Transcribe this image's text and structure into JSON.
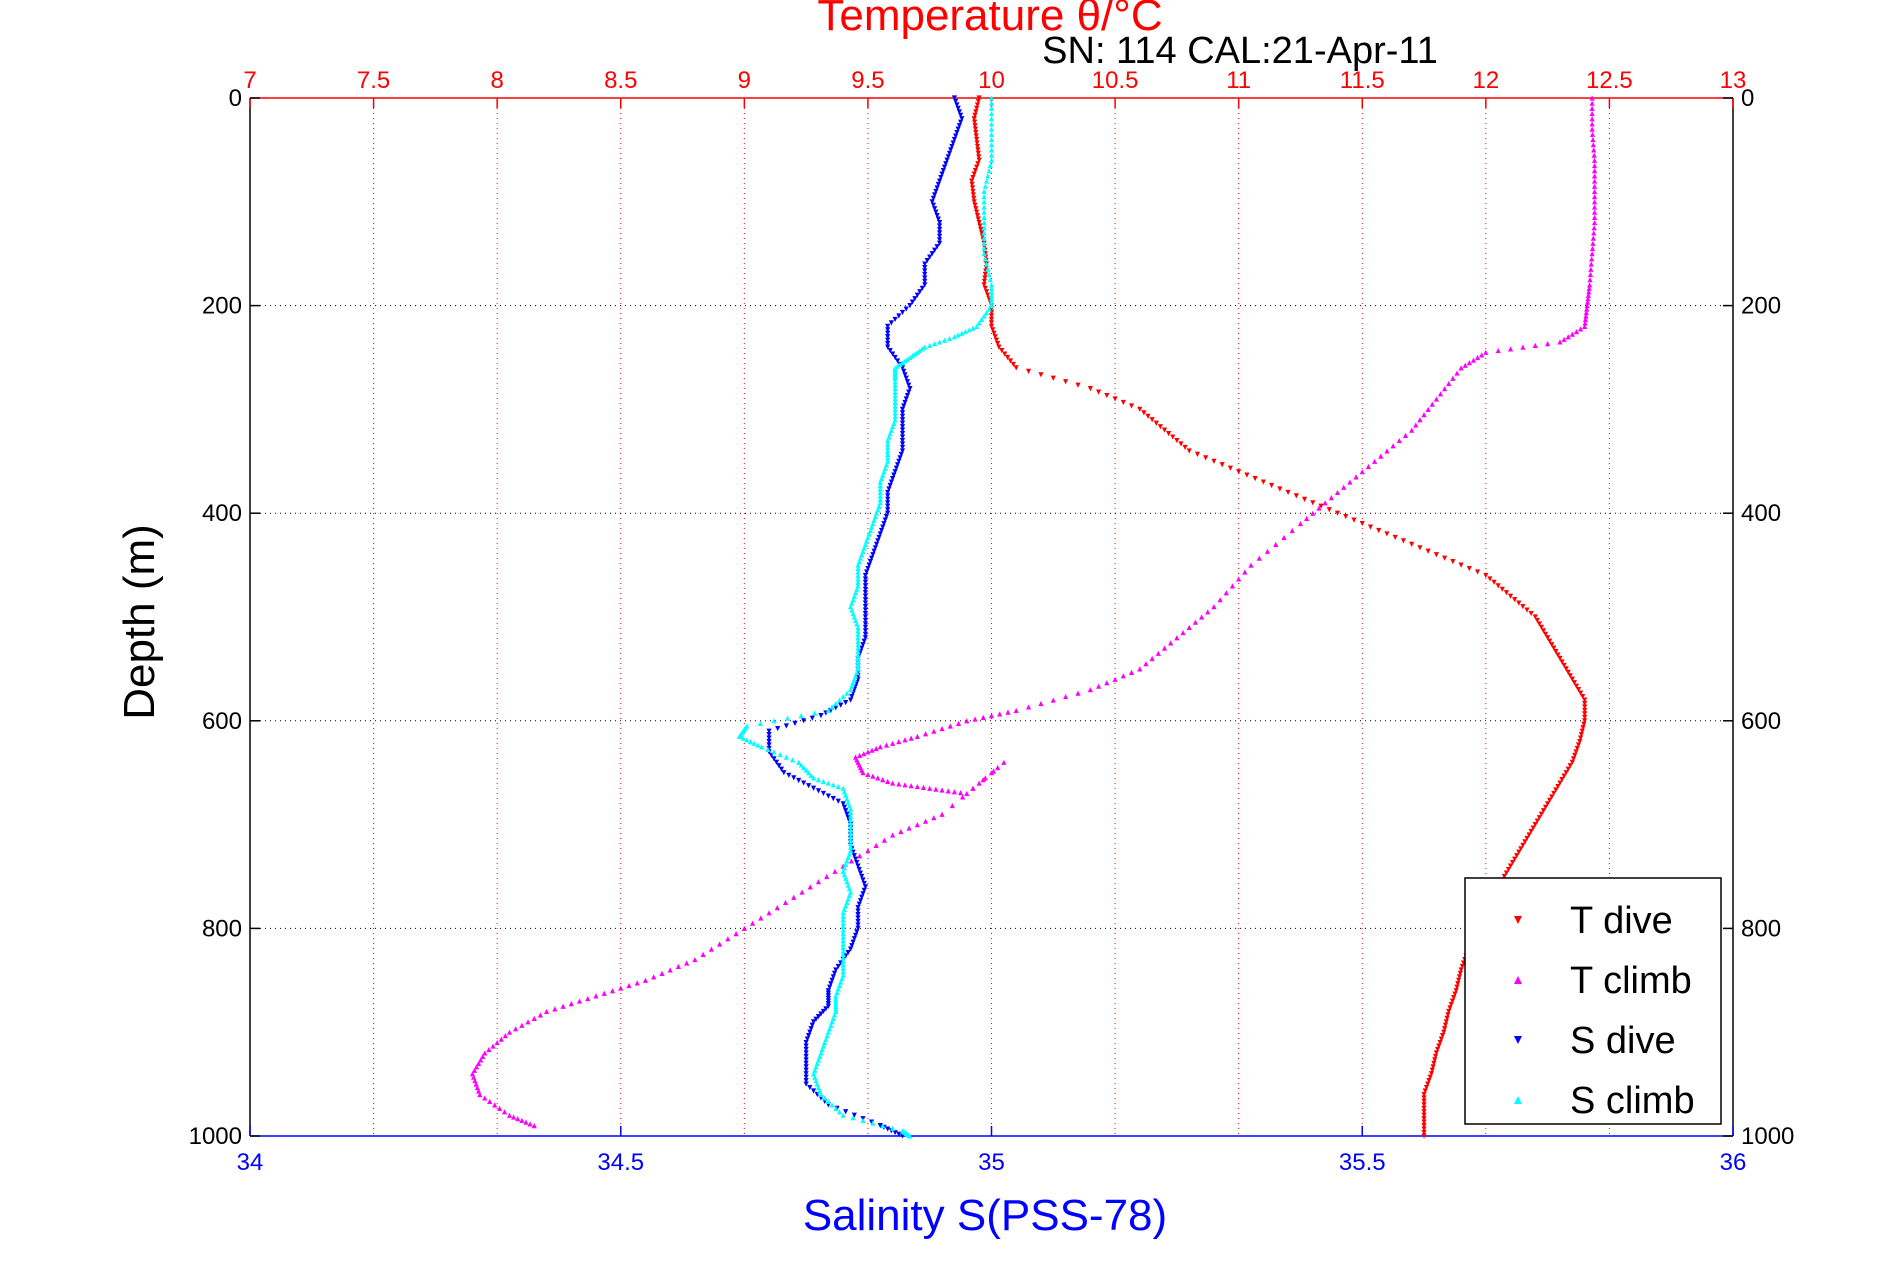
{
  "chart_data": {
    "type": "scatter",
    "top_title": "Temperature θ/°C",
    "subtitle": "SN: 114  CAL:21-Apr-11",
    "ylabel": "Depth (m)",
    "xlabel": "Salinity S(PSS-78)",
    "y_axis": {
      "range": [
        0,
        1000
      ],
      "reversed": true,
      "ticks": [
        0,
        200,
        400,
        600,
        800,
        1000
      ]
    },
    "temperature_axis": {
      "range": [
        7,
        13
      ],
      "ticks": [
        "7",
        "7.5",
        "8",
        "8.5",
        "9",
        "9.5",
        "10",
        "10.5",
        "11",
        "11.5",
        "12",
        "12.5",
        "13"
      ],
      "color": "#ff0000",
      "grid": true
    },
    "salinity_axis": {
      "range": [
        34,
        36
      ],
      "ticks": [
        "34",
        "34.5",
        "35",
        "35.5",
        "36"
      ],
      "color": "#0000ff"
    },
    "legend_position": "bottom-right",
    "series": [
      {
        "name": "T dive",
        "variable": "temperature",
        "color": "#ff0000",
        "marker": "triangle-down",
        "points": [
          [
            9.95,
            0
          ],
          [
            9.93,
            20
          ],
          [
            9.94,
            40
          ],
          [
            9.95,
            60
          ],
          [
            9.92,
            80
          ],
          [
            9.93,
            100
          ],
          [
            9.95,
            120
          ],
          [
            9.97,
            140
          ],
          [
            9.98,
            160
          ],
          [
            9.97,
            180
          ],
          [
            10.0,
            200
          ],
          [
            10.0,
            220
          ],
          [
            10.03,
            240
          ],
          [
            10.1,
            260
          ],
          [
            10.4,
            280
          ],
          [
            10.6,
            300
          ],
          [
            10.7,
            320
          ],
          [
            10.8,
            340
          ],
          [
            11.0,
            360
          ],
          [
            11.2,
            380
          ],
          [
            11.4,
            400
          ],
          [
            11.6,
            420
          ],
          [
            11.8,
            440
          ],
          [
            12.0,
            460
          ],
          [
            12.1,
            480
          ],
          [
            12.2,
            500
          ],
          [
            12.25,
            520
          ],
          [
            12.3,
            540
          ],
          [
            12.35,
            560
          ],
          [
            12.4,
            580
          ],
          [
            12.4,
            600
          ],
          [
            12.38,
            620
          ],
          [
            12.35,
            640
          ],
          [
            12.3,
            660
          ],
          [
            12.25,
            680
          ],
          [
            12.2,
            700
          ],
          [
            12.15,
            720
          ],
          [
            12.1,
            740
          ],
          [
            12.05,
            760
          ],
          [
            12.0,
            780
          ],
          [
            11.95,
            800
          ],
          [
            11.93,
            820
          ],
          [
            11.9,
            840
          ],
          [
            11.88,
            860
          ],
          [
            11.85,
            880
          ],
          [
            11.83,
            900
          ],
          [
            11.8,
            920
          ],
          [
            11.78,
            940
          ],
          [
            11.75,
            960
          ],
          [
            11.75,
            980
          ],
          [
            11.75,
            1000
          ]
        ]
      },
      {
        "name": "T climb",
        "variable": "temperature",
        "color": "#ff00ff",
        "marker": "triangle-up",
        "points": [
          [
            12.43,
            0
          ],
          [
            12.43,
            30
          ],
          [
            12.44,
            60
          ],
          [
            12.44,
            90
          ],
          [
            12.44,
            120
          ],
          [
            12.43,
            150
          ],
          [
            12.42,
            180
          ],
          [
            12.41,
            200
          ],
          [
            12.4,
            220
          ],
          [
            12.3,
            235
          ],
          [
            12.0,
            245
          ],
          [
            11.9,
            260
          ],
          [
            11.8,
            290
          ],
          [
            11.7,
            320
          ],
          [
            11.55,
            350
          ],
          [
            11.4,
            380
          ],
          [
            11.25,
            410
          ],
          [
            11.05,
            450
          ],
          [
            10.9,
            490
          ],
          [
            10.75,
            520
          ],
          [
            10.6,
            550
          ],
          [
            10.4,
            570
          ],
          [
            10.1,
            590
          ],
          [
            9.9,
            600
          ],
          [
            9.7,
            615
          ],
          [
            9.55,
            625
          ],
          [
            9.45,
            635
          ],
          [
            9.48,
            650
          ],
          [
            9.6,
            660
          ],
          [
            9.75,
            665
          ],
          [
            9.9,
            670
          ],
          [
            10.05,
            640
          ],
          [
            9.8,
            690
          ],
          [
            9.6,
            710
          ],
          [
            9.4,
            740
          ],
          [
            9.2,
            770
          ],
          [
            9.0,
            800
          ],
          [
            8.8,
            830
          ],
          [
            8.6,
            850
          ],
          [
            8.4,
            865
          ],
          [
            8.2,
            880
          ],
          [
            8.05,
            900
          ],
          [
            7.95,
            920
          ],
          [
            7.9,
            940
          ],
          [
            7.93,
            960
          ],
          [
            8.05,
            980
          ],
          [
            8.15,
            990
          ]
        ]
      },
      {
        "name": "S dive",
        "variable": "salinity",
        "color": "#0000ff",
        "marker": "triangle-down",
        "points": [
          [
            34.95,
            0
          ],
          [
            34.96,
            20
          ],
          [
            34.95,
            40
          ],
          [
            34.94,
            60
          ],
          [
            34.93,
            80
          ],
          [
            34.92,
            100
          ],
          [
            34.93,
            120
          ],
          [
            34.93,
            140
          ],
          [
            34.91,
            160
          ],
          [
            34.91,
            180
          ],
          [
            34.89,
            200
          ],
          [
            34.86,
            220
          ],
          [
            34.86,
            240
          ],
          [
            34.88,
            260
          ],
          [
            34.89,
            280
          ],
          [
            34.88,
            300
          ],
          [
            34.88,
            320
          ],
          [
            34.88,
            340
          ],
          [
            34.87,
            360
          ],
          [
            34.86,
            380
          ],
          [
            34.86,
            400
          ],
          [
            34.85,
            420
          ],
          [
            34.84,
            440
          ],
          [
            34.83,
            460
          ],
          [
            34.83,
            480
          ],
          [
            34.83,
            500
          ],
          [
            34.83,
            520
          ],
          [
            34.82,
            540
          ],
          [
            34.82,
            560
          ],
          [
            34.81,
            580
          ],
          [
            34.77,
            595
          ],
          [
            34.7,
            610
          ],
          [
            34.7,
            630
          ],
          [
            34.72,
            650
          ],
          [
            34.76,
            665
          ],
          [
            34.8,
            680
          ],
          [
            34.81,
            700
          ],
          [
            34.81,
            720
          ],
          [
            34.82,
            740
          ],
          [
            34.83,
            760
          ],
          [
            34.82,
            780
          ],
          [
            34.82,
            800
          ],
          [
            34.81,
            820
          ],
          [
            34.79,
            840
          ],
          [
            34.78,
            860
          ],
          [
            34.78,
            875
          ],
          [
            34.76,
            890
          ],
          [
            34.75,
            910
          ],
          [
            34.75,
            930
          ],
          [
            34.75,
            950
          ],
          [
            34.78,
            970
          ],
          [
            34.85,
            990
          ],
          [
            34.88,
            1000
          ]
        ]
      },
      {
        "name": "S climb",
        "variable": "salinity",
        "color": "#00ffff",
        "marker": "triangle-up",
        "points": [
          [
            35.0,
            0
          ],
          [
            35.0,
            30
          ],
          [
            35.0,
            60
          ],
          [
            34.99,
            90
          ],
          [
            34.99,
            120
          ],
          [
            34.99,
            150
          ],
          [
            35.0,
            180
          ],
          [
            35.0,
            200
          ],
          [
            34.98,
            220
          ],
          [
            34.95,
            230
          ],
          [
            34.91,
            240
          ],
          [
            34.89,
            250
          ],
          [
            34.87,
            260
          ],
          [
            34.87,
            270
          ],
          [
            34.87,
            290
          ],
          [
            34.87,
            310
          ],
          [
            34.86,
            330
          ],
          [
            34.86,
            350
          ],
          [
            34.85,
            370
          ],
          [
            34.85,
            390
          ],
          [
            34.84,
            410
          ],
          [
            34.83,
            430
          ],
          [
            34.82,
            450
          ],
          [
            34.82,
            470
          ],
          [
            34.81,
            490
          ],
          [
            34.82,
            510
          ],
          [
            34.82,
            530
          ],
          [
            34.82,
            550
          ],
          [
            34.81,
            570
          ],
          [
            34.78,
            590
          ],
          [
            34.67,
            605
          ],
          [
            34.66,
            615
          ],
          [
            34.69,
            625
          ],
          [
            34.74,
            640
          ],
          [
            34.76,
            655
          ],
          [
            34.8,
            665
          ],
          [
            34.81,
            685
          ],
          [
            34.81,
            705
          ],
          [
            34.81,
            725
          ],
          [
            34.8,
            745
          ],
          [
            34.81,
            765
          ],
          [
            34.8,
            785
          ],
          [
            34.8,
            805
          ],
          [
            34.8,
            825
          ],
          [
            34.8,
            845
          ],
          [
            34.79,
            865
          ],
          [
            34.79,
            880
          ],
          [
            34.78,
            900
          ],
          [
            34.77,
            920
          ],
          [
            34.76,
            940
          ],
          [
            34.77,
            960
          ],
          [
            34.8,
            980
          ],
          [
            34.88,
            995
          ],
          [
            34.89,
            1000
          ]
        ]
      }
    ]
  }
}
